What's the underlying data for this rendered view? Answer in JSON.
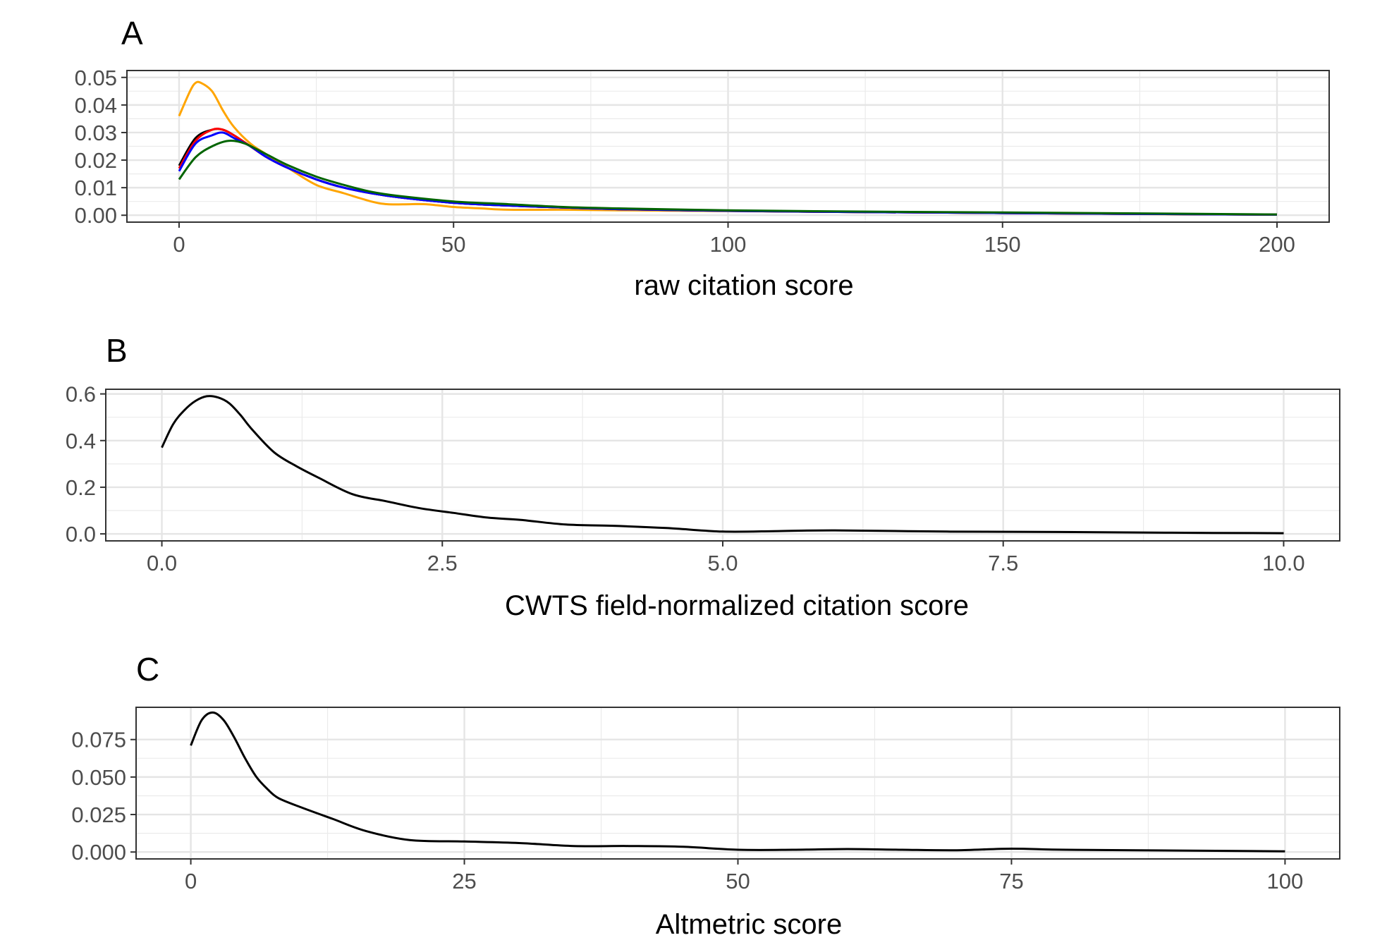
{
  "figure": {
    "panels": [
      {
        "letter": "A",
        "xlabel": "raw citation score",
        "xlim": [
          -9.5,
          209.5
        ],
        "ylim": [
          -0.0025,
          0.0525
        ],
        "xticks": [
          0,
          50,
          100,
          150,
          200
        ],
        "xtick_labels": [
          "0",
          "50",
          "100",
          "150",
          "200"
        ],
        "yticks": [
          0,
          0.01,
          0.02,
          0.03,
          0.04,
          0.05
        ],
        "ytick_labels": [
          "0.00",
          "0.01",
          "0.02",
          "0.03",
          "0.04",
          "0.05"
        ]
      },
      {
        "letter": "B",
        "xlabel": "CWTS field-normalized citation score",
        "xlim": [
          -0.5,
          10.5
        ],
        "ylim": [
          -0.03,
          0.62
        ],
        "xticks": [
          0,
          2.5,
          5,
          7.5,
          10
        ],
        "xtick_labels": [
          "0.0",
          "2.5",
          "5.0",
          "7.5",
          "10.0"
        ],
        "yticks": [
          0,
          0.2,
          0.4,
          0.6
        ],
        "ytick_labels": [
          "0.0",
          "0.2",
          "0.4",
          "0.6"
        ]
      },
      {
        "letter": "C",
        "xlabel": "Altmetric score",
        "xlim": [
          -5,
          105
        ],
        "ylim": [
          -0.0046,
          0.0965
        ],
        "xticks": [
          0,
          25,
          50,
          75,
          100
        ],
        "xtick_labels": [
          "0",
          "25",
          "50",
          "75",
          "100"
        ],
        "yticks": [
          0,
          0.025,
          0.05,
          0.075
        ],
        "ytick_labels": [
          "0.000",
          "0.025",
          "0.050",
          "0.075"
        ]
      }
    ]
  },
  "chart_data": [
    {
      "type": "line",
      "xlabel": "raw citation score",
      "ylabel": "",
      "xlim": [
        -9.5,
        209.5
      ],
      "ylim": [
        -0.0025,
        0.0525
      ],
      "grid": true,
      "series": [
        {
          "color": "#ffa500",
          "x": [
            0,
            2,
            3,
            4,
            6,
            8,
            10,
            13,
            16,
            20,
            25,
            30,
            35,
            38,
            42,
            45,
            50,
            55,
            60,
            70,
            80,
            100,
            120,
            150,
            170,
            200
          ],
          "y": [
            0.036,
            0.045,
            0.048,
            0.048,
            0.045,
            0.038,
            0.032,
            0.026,
            0.022,
            0.017,
            0.011,
            0.008,
            0.005,
            0.004,
            0.004,
            0.004,
            0.003,
            0.0025,
            0.002,
            0.002,
            0.0018,
            0.0015,
            0.0012,
            0.0008,
            0.0005,
            0.0002
          ]
        },
        {
          "color": "#000000",
          "x": [
            0,
            3,
            6,
            8,
            10,
            13,
            16,
            20,
            25,
            30,
            35,
            40,
            50,
            60,
            70,
            80,
            100,
            120,
            150,
            200
          ],
          "y": [
            0.018,
            0.028,
            0.031,
            0.031,
            0.029,
            0.025,
            0.021,
            0.017,
            0.013,
            0.01,
            0.008,
            0.0065,
            0.0045,
            0.0035,
            0.0028,
            0.0022,
            0.0016,
            0.0012,
            0.0008,
            0.0002
          ]
        },
        {
          "color": "#ff0000",
          "x": [
            0,
            3,
            6,
            8,
            10,
            13,
            16,
            20,
            25,
            30,
            35,
            40,
            50,
            60,
            70,
            80,
            100,
            120,
            150,
            200
          ],
          "y": [
            0.017,
            0.027,
            0.031,
            0.031,
            0.029,
            0.025,
            0.021,
            0.017,
            0.013,
            0.01,
            0.008,
            0.0065,
            0.0045,
            0.0035,
            0.0028,
            0.0022,
            0.0016,
            0.0012,
            0.0008,
            0.0002
          ]
        },
        {
          "color": "#0000ff",
          "x": [
            0,
            3,
            6,
            8,
            10,
            13,
            16,
            20,
            25,
            30,
            35,
            40,
            50,
            60,
            70,
            80,
            100,
            120,
            150,
            200
          ],
          "y": [
            0.016,
            0.026,
            0.029,
            0.03,
            0.028,
            0.025,
            0.021,
            0.017,
            0.013,
            0.01,
            0.008,
            0.0065,
            0.0045,
            0.0035,
            0.0028,
            0.0022,
            0.0016,
            0.0012,
            0.0008,
            0.0002
          ]
        },
        {
          "color": "#006400",
          "x": [
            0,
            3,
            6,
            9,
            12,
            16,
            20,
            25,
            30,
            35,
            40,
            50,
            60,
            70,
            80,
            100,
            120,
            150,
            200
          ],
          "y": [
            0.013,
            0.021,
            0.025,
            0.027,
            0.026,
            0.022,
            0.018,
            0.014,
            0.011,
            0.0085,
            0.007,
            0.005,
            0.004,
            0.003,
            0.0025,
            0.0018,
            0.0014,
            0.001,
            0.0003
          ]
        }
      ]
    },
    {
      "type": "line",
      "xlabel": "CWTS field-normalized citation score",
      "ylabel": "",
      "xlim": [
        -0.5,
        10.5
      ],
      "ylim": [
        -0.03,
        0.62
      ],
      "grid": true,
      "series": [
        {
          "color": "#000000",
          "x": [
            0,
            0.1,
            0.2,
            0.3,
            0.4,
            0.5,
            0.6,
            0.7,
            0.8,
            1.0,
            1.2,
            1.4,
            1.7,
            2.0,
            2.3,
            2.6,
            2.9,
            3.2,
            3.6,
            4.0,
            4.5,
            5.0,
            5.5,
            6.0,
            7.0,
            8.0,
            9.0,
            10.0
          ],
          "y": [
            0.37,
            0.47,
            0.53,
            0.57,
            0.59,
            0.585,
            0.56,
            0.51,
            0.45,
            0.35,
            0.29,
            0.24,
            0.17,
            0.14,
            0.11,
            0.09,
            0.07,
            0.06,
            0.04,
            0.035,
            0.025,
            0.01,
            0.012,
            0.015,
            0.01,
            0.008,
            0.005,
            0.003
          ]
        }
      ]
    },
    {
      "type": "line",
      "xlabel": "Altmetric score",
      "ylabel": "",
      "xlim": [
        -5,
        105
      ],
      "ylim": [
        -0.0046,
        0.0965
      ],
      "grid": true,
      "series": [
        {
          "color": "#000000",
          "x": [
            0,
            1,
            2,
            3,
            4,
            5,
            6,
            7,
            8,
            10,
            13,
            16,
            20,
            25,
            30,
            35,
            40,
            45,
            50,
            55,
            60,
            65,
            70,
            75,
            80,
            90,
            100
          ],
          "y": [
            0.071,
            0.088,
            0.093,
            0.088,
            0.076,
            0.062,
            0.05,
            0.042,
            0.036,
            0.03,
            0.022,
            0.014,
            0.008,
            0.007,
            0.006,
            0.004,
            0.004,
            0.0035,
            0.0015,
            0.0015,
            0.002,
            0.0015,
            0.0012,
            0.0022,
            0.0015,
            0.001,
            0.0005
          ]
        }
      ]
    }
  ]
}
